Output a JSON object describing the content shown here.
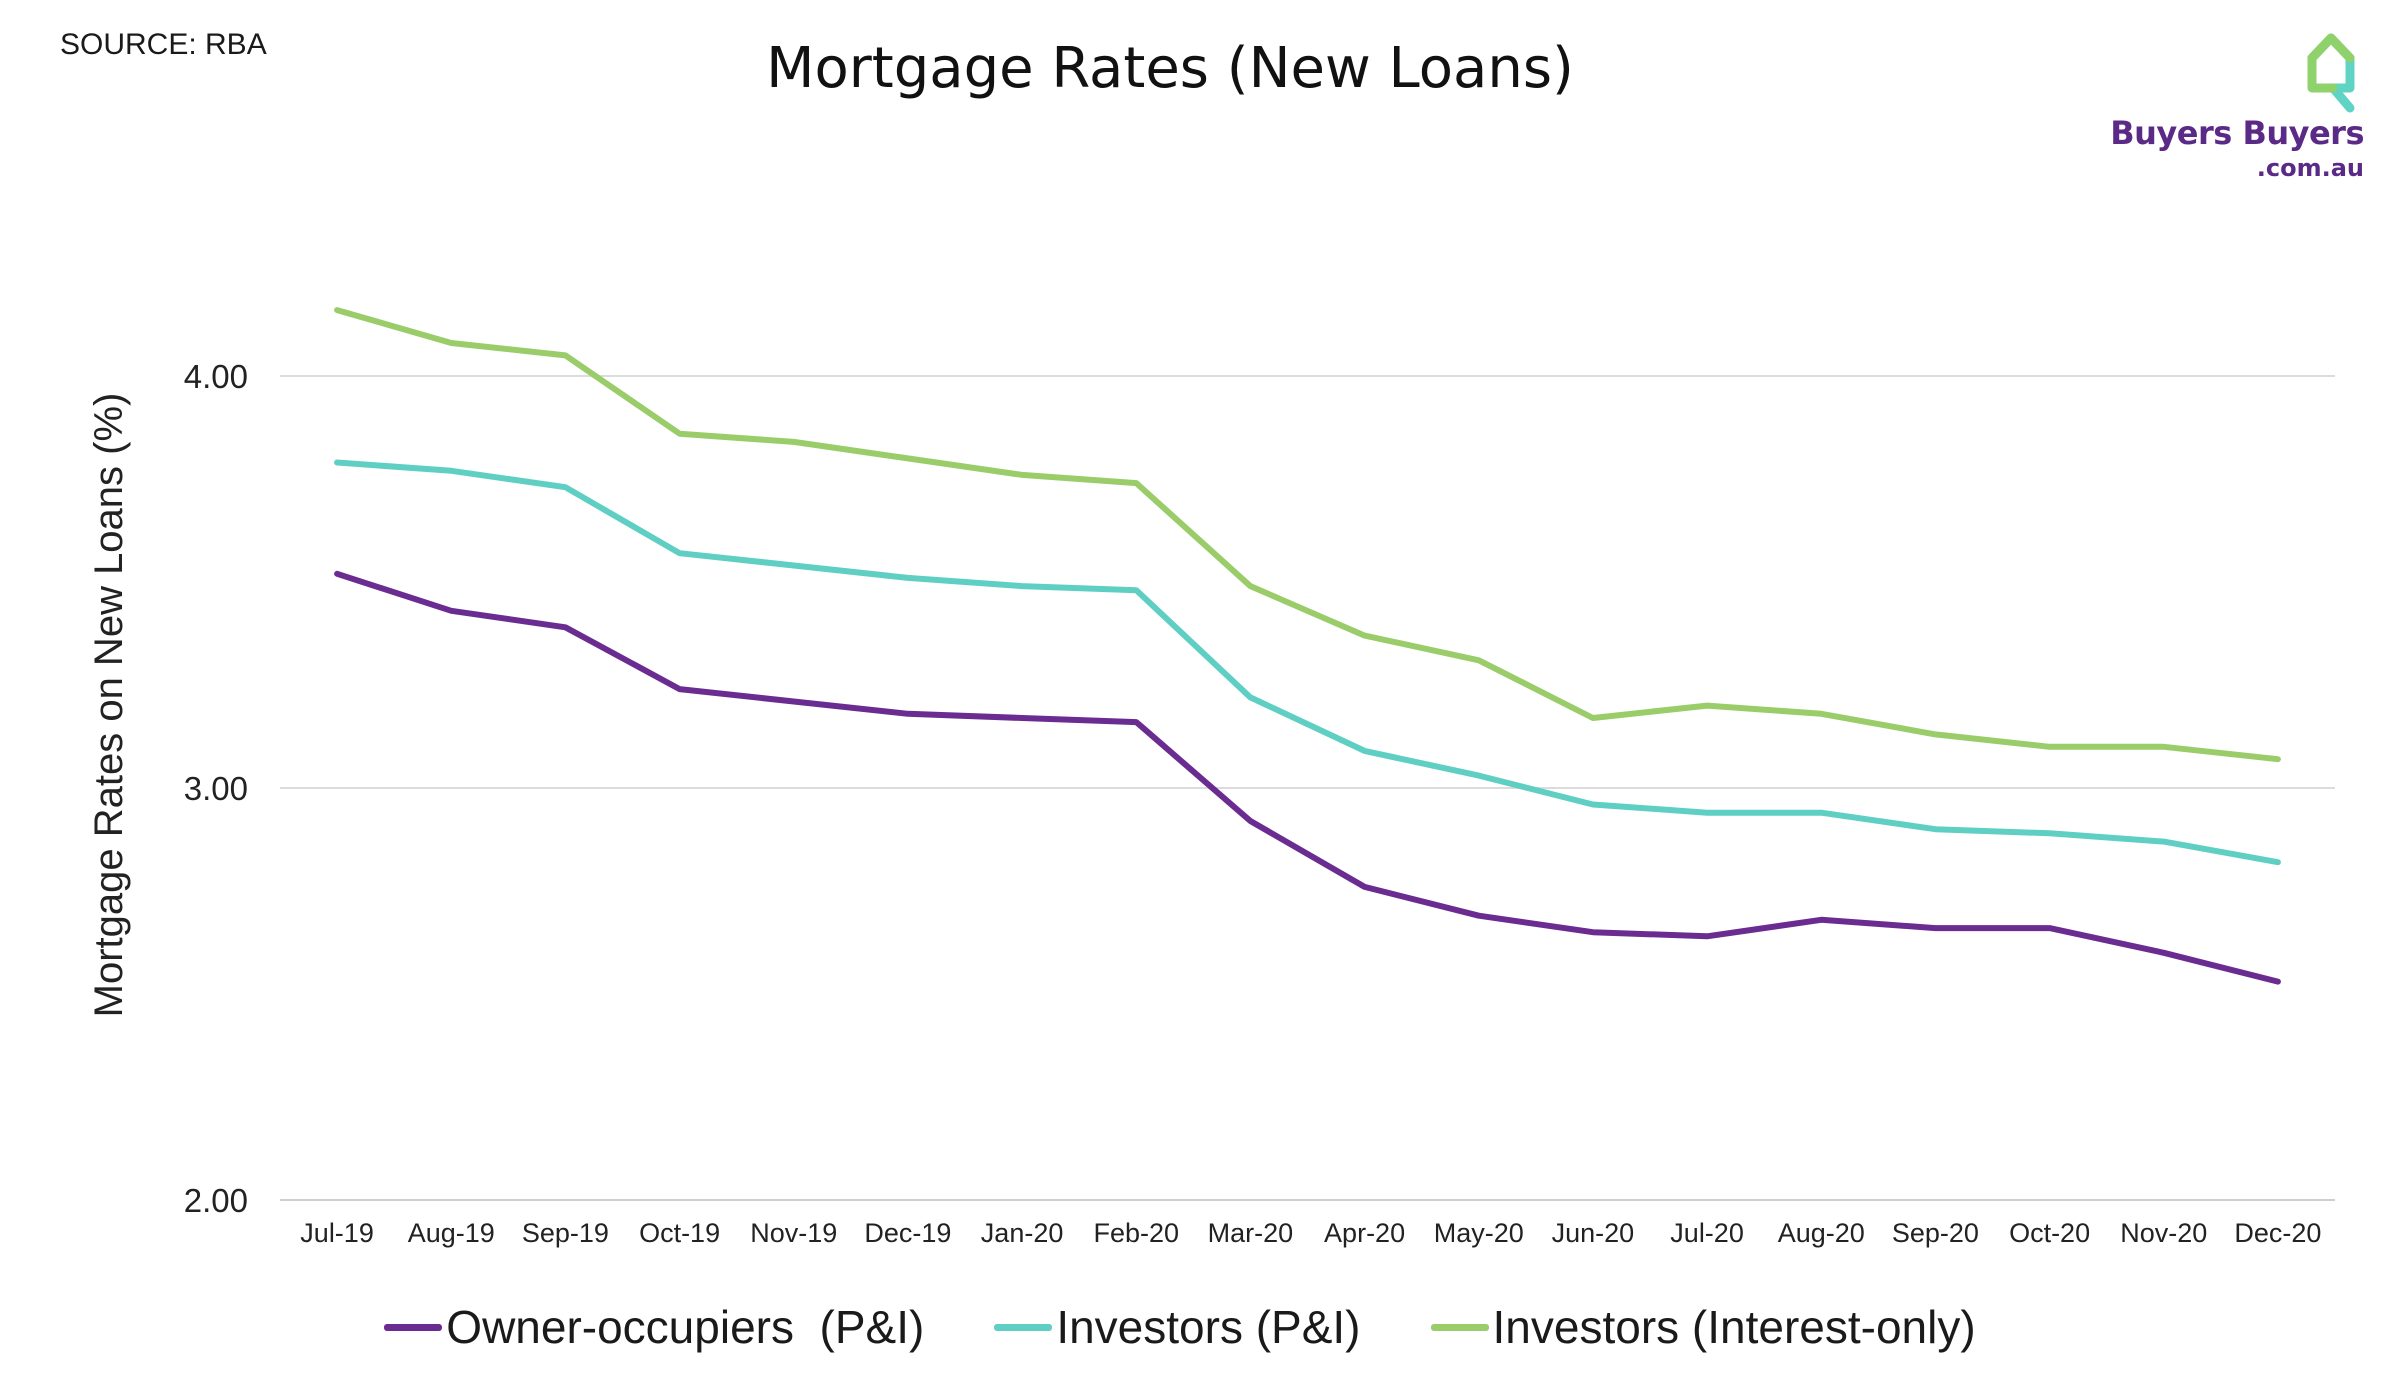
{
  "source_label": "SOURCE: RBA",
  "logo": {
    "line1": "Buyers Buyers",
    "line2": ".com.au",
    "icon": "house-pin-icon",
    "color_purple": "#5b2a86",
    "color_green": "#8fd16a",
    "color_teal": "#5fd3c4"
  },
  "chart_data": {
    "type": "line",
    "title": "Mortgage Rates (New Loans)",
    "xlabel": "",
    "ylabel": "Mortgage Rates on New Loans (%)",
    "ylim": [
      2.0,
      4.5
    ],
    "yticks": [
      2.0,
      3.0,
      4.0
    ],
    "ytick_labels": [
      "2.00",
      "3.00",
      "4.00"
    ],
    "grid": true,
    "legend_position": "bottom",
    "categories": [
      "Jul-19",
      "Aug-19",
      "Sep-19",
      "Oct-19",
      "Nov-19",
      "Dec-19",
      "Jan-20",
      "Feb-20",
      "Mar-20",
      "Apr-20",
      "May-20",
      "Jun-20",
      "Jul-20",
      "Aug-20",
      "Sep-20",
      "Oct-20",
      "Nov-20",
      "Dec-20"
    ],
    "series": [
      {
        "name": "Owner-occupiers  (P&I)",
        "color": "#6a2c91",
        "values": [
          3.52,
          3.43,
          3.39,
          3.24,
          3.21,
          3.18,
          3.17,
          3.16,
          2.92,
          2.76,
          2.69,
          2.65,
          2.64,
          2.68,
          2.66,
          2.66,
          2.6,
          2.53
        ]
      },
      {
        "name": "Investors (P&I)",
        "color": "#5fcfc3",
        "values": [
          3.79,
          3.77,
          3.73,
          3.57,
          3.54,
          3.51,
          3.49,
          3.48,
          3.22,
          3.09,
          3.03,
          2.96,
          2.94,
          2.94,
          2.9,
          2.89,
          2.87,
          2.82
        ]
      },
      {
        "name": "Investors (Interest-only)",
        "color": "#9acd6a",
        "values": [
          4.16,
          4.08,
          4.05,
          3.86,
          3.84,
          3.8,
          3.76,
          3.74,
          3.49,
          3.37,
          3.31,
          3.17,
          3.2,
          3.18,
          3.13,
          3.1,
          3.1,
          3.07
        ]
      }
    ]
  }
}
